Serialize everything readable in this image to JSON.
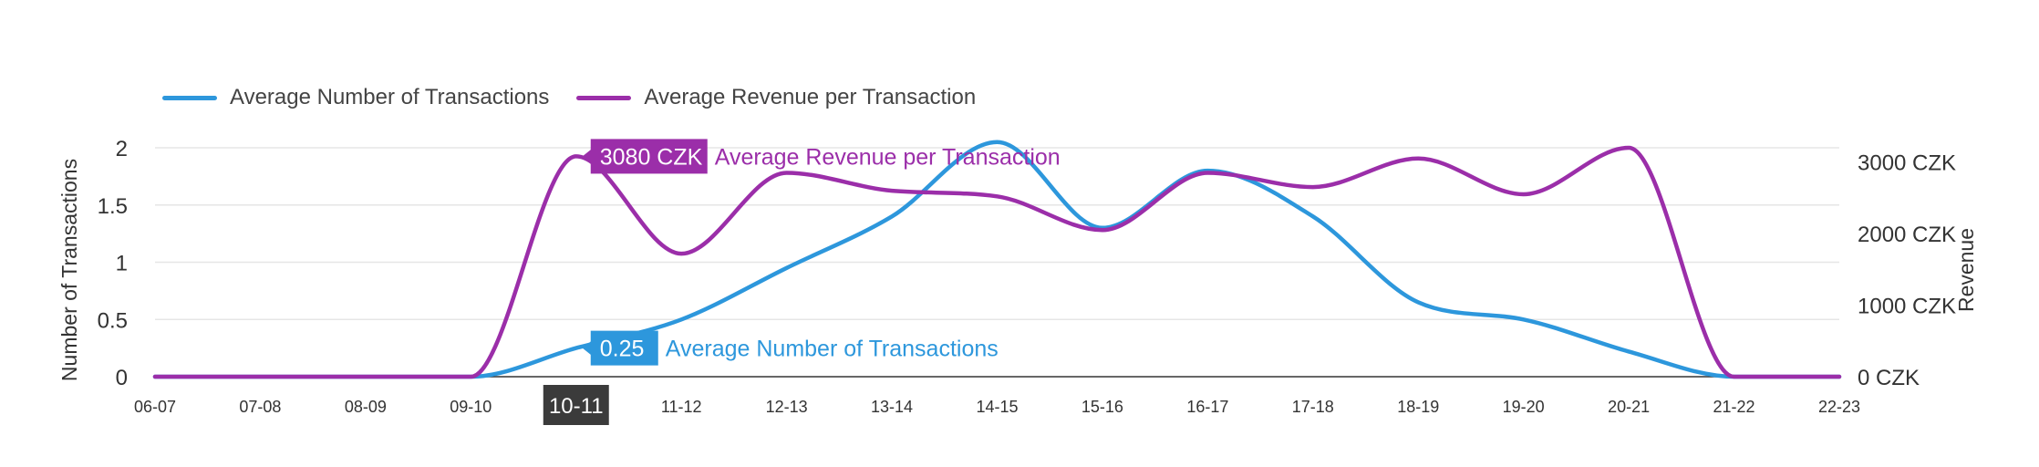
{
  "chart_data": {
    "type": "line",
    "categories": [
      "06-07",
      "07-08",
      "08-09",
      "09-10",
      "10-11",
      "11-12",
      "12-13",
      "13-14",
      "14-15",
      "15-16",
      "16-17",
      "17-18",
      "18-19",
      "19-20",
      "20-21",
      "21-22",
      "22-23"
    ],
    "series": [
      {
        "name": "Average Number of Transactions",
        "axis": "left",
        "color": "#2d97dc",
        "values": [
          0,
          0,
          0,
          0,
          0.25,
          0.5,
          0.95,
          1.4,
          2.05,
          1.3,
          1.8,
          1.4,
          0.65,
          0.5,
          0.22,
          0,
          0
        ]
      },
      {
        "name": "Average Revenue per Transaction",
        "axis": "right",
        "color": "#9b2ea9",
        "values": [
          0,
          0,
          0,
          0,
          3080,
          1720,
          2850,
          2600,
          2520,
          2050,
          2850,
          2650,
          3050,
          2550,
          3200,
          0,
          0
        ]
      }
    ],
    "ylabel_left": "Number of Transactions",
    "ylabel_right": "Revenue",
    "yticks_left": [
      "0",
      "0.5",
      "1",
      "1.5",
      "2"
    ],
    "ylim_left": [
      0,
      2
    ],
    "yticks_right": [
      "0 CZK",
      "1000 CZK",
      "2000 CZK",
      "3000 CZK"
    ],
    "ylim_right": [
      0,
      3200
    ],
    "grid": true,
    "legend_position": "top-left",
    "highlighted_category": "10-11",
    "tooltips": [
      {
        "series": "Average Revenue per Transaction",
        "value": "3080 CZK",
        "label": "Average Revenue per Transaction"
      },
      {
        "series": "Average Number of Transactions",
        "value": "0.25",
        "label": "Average Number of Transactions"
      }
    ]
  },
  "colors": {
    "grid": "#e6e6e6",
    "axis_line": "#333333",
    "tick_text": "#333333",
    "highlight_bg": "#3b3b3b"
  }
}
